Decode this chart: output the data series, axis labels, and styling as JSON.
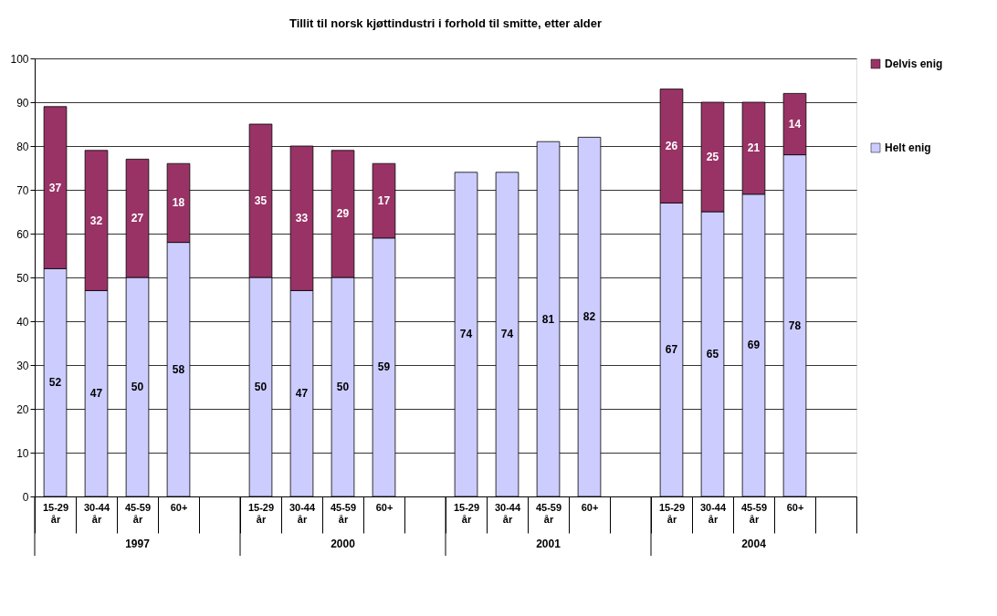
{
  "chart_data": {
    "type": "bar",
    "title": "Tillit til norsk kjøttindustri i forhold til smitte, etter alder",
    "categories": [
      "15-29 år",
      "30-44 år",
      "45-59 år",
      "60+",
      null,
      "15-29 år",
      "30-44 år",
      "45-59 år",
      "60+",
      null,
      "15-29 år",
      "30-44 år",
      "45-59 år",
      "60+",
      null,
      "15-29 år",
      "30-44 år",
      "45-59 år",
      "60+",
      null
    ],
    "annotations": [
      "1997",
      "2000",
      "2001",
      "2004"
    ],
    "stacked": true,
    "series": [
      {
        "name": "Helt enig",
        "color": "#ccccff",
        "values": [
          52,
          47,
          50,
          58,
          null,
          50,
          47,
          50,
          59,
          null,
          74,
          74,
          81,
          82,
          null,
          67,
          65,
          69,
          78,
          null
        ]
      },
      {
        "name": "Delvis enig",
        "color": "#993366",
        "values": [
          37,
          32,
          27,
          18,
          null,
          35,
          33,
          29,
          17,
          null,
          null,
          null,
          null,
          null,
          null,
          26,
          25,
          21,
          14,
          null
        ]
      }
    ],
    "ylim": [
      0,
      100
    ],
    "yticks": [
      0,
      10,
      20,
      30,
      40,
      50,
      60,
      70,
      80,
      90,
      100
    ],
    "grid": "y",
    "legend": "right",
    "data_labels": true
  }
}
